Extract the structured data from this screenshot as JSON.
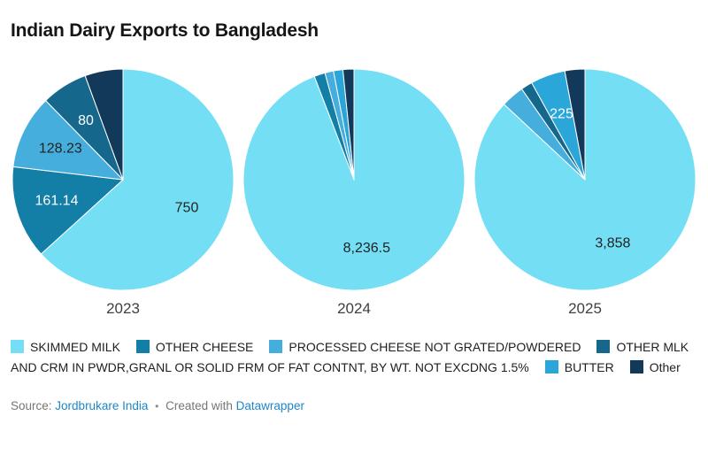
{
  "header": {
    "title": "Indian Dairy Exports to Bangladesh"
  },
  "footer": {
    "source_label": "Source:",
    "source_link": "Jordbrukare India",
    "separator": "•",
    "created_label": "Created with",
    "created_link": "Datawrapper"
  },
  "chart_data": {
    "type": "pie",
    "title": "Indian Dairy Exports to Bangladesh",
    "legend_position": "bottom",
    "pie_captions": [
      "2023",
      "2024",
      "2025"
    ],
    "categories": [
      {
        "name": "SKIMMED MILK",
        "color": "#74dff4"
      },
      {
        "name": "OTHER CHEESE",
        "color": "#137fa6"
      },
      {
        "name": "PROCESSED CHEESE NOT GRATED/POWDERED",
        "color": "#46aedd"
      },
      {
        "name": "OTHER MLK AND CRM IN PWDR,GRANL OR SOLID FRM OF FAT CONTNT, BY WT. NOT EXCDNG 1.5%",
        "color": "#15688c"
      },
      {
        "name": "BUTTER",
        "color": "#2aa6d9"
      },
      {
        "name": "Other",
        "color": "#12395a"
      }
    ],
    "pies": [
      {
        "label": "2023",
        "values": [
          750,
          161.14,
          128.23,
          80,
          0,
          66
        ],
        "slice_labels": [
          "750",
          "161.14",
          "128.23",
          "80",
          null,
          null
        ]
      },
      {
        "label": "2024",
        "values": [
          8236.5,
          140,
          110,
          0,
          120,
          140
        ],
        "slice_labels": [
          "8,236.5",
          null,
          null,
          null,
          null,
          null
        ]
      },
      {
        "label": "2025",
        "values": [
          3858,
          0,
          150,
          75,
          225,
          130
        ],
        "slice_labels": [
          "3,858",
          null,
          null,
          null,
          "225",
          null
        ]
      }
    ]
  }
}
